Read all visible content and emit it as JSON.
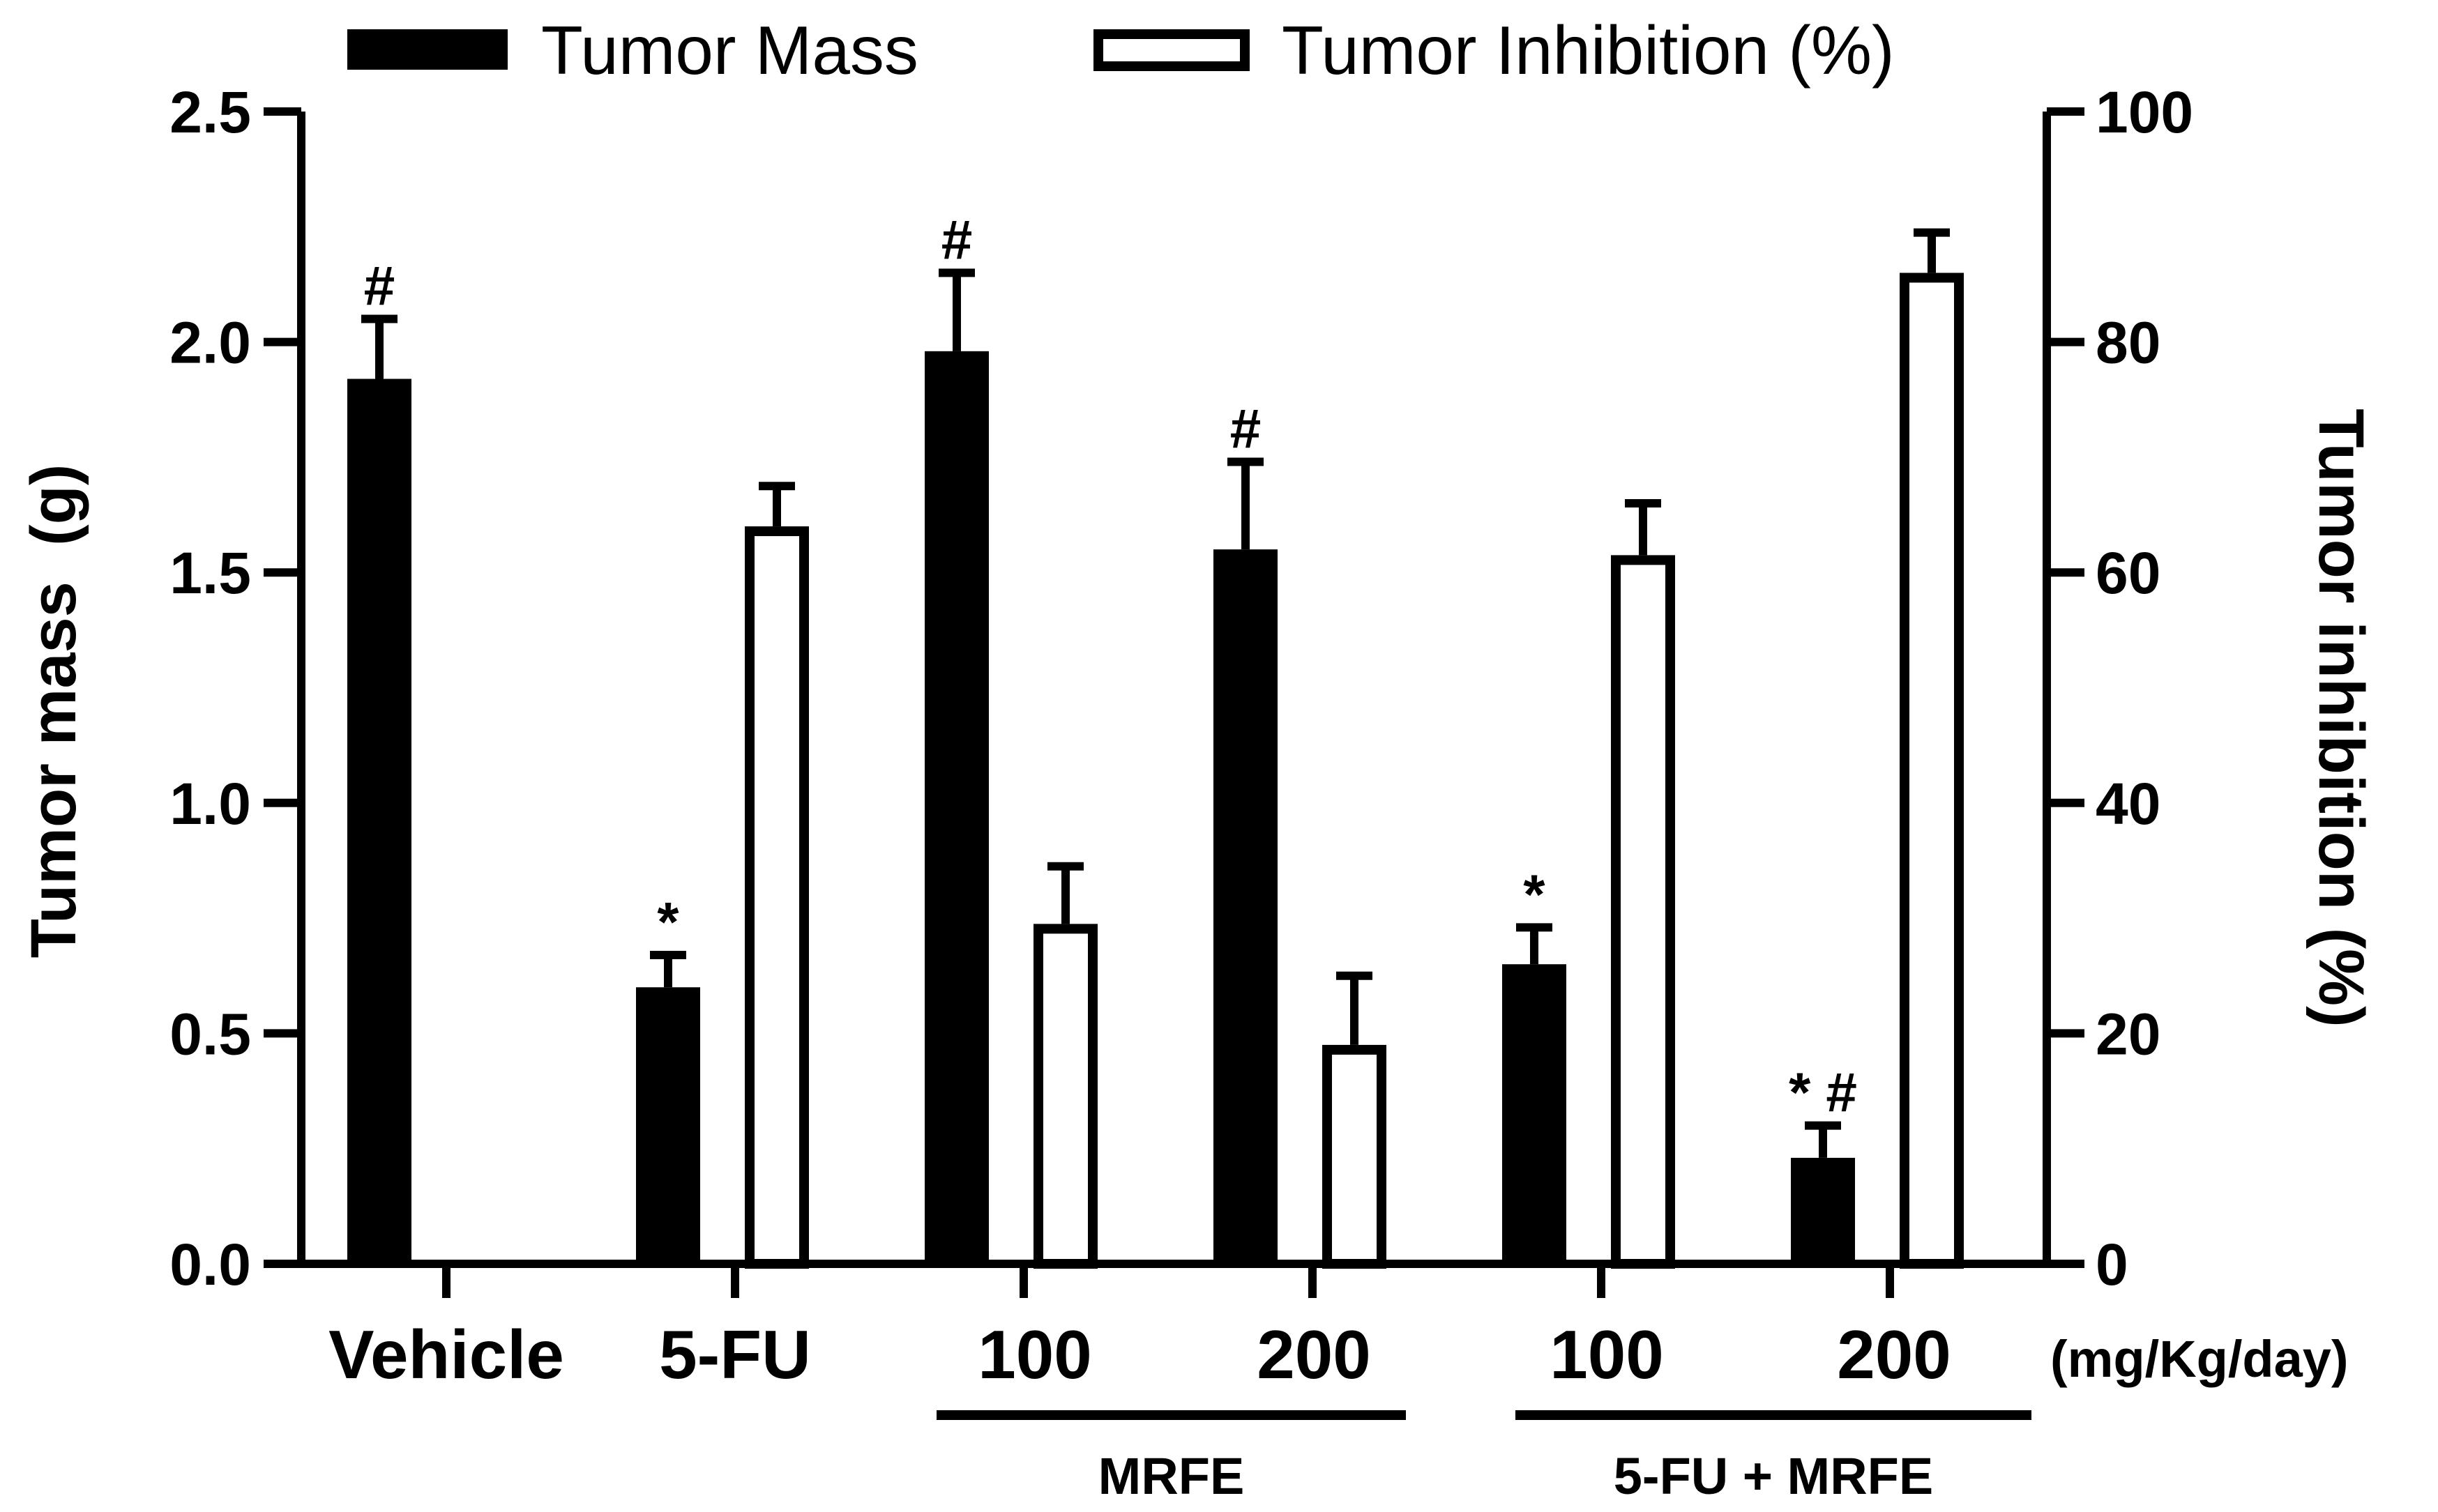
{
  "chart_data": {
    "type": "bar",
    "legend": {
      "mass_label": "Tumor Mass",
      "inhibition_label": "Tumor Inhibition (%)",
      "placement": "top"
    },
    "left_axis": {
      "label": "Tumor mass  (g)",
      "ylim": [
        0,
        2.5
      ],
      "ticks": [
        "0.0",
        "0.5",
        "1.0",
        "1.5",
        "2.0",
        "2.5"
      ]
    },
    "right_axis": {
      "label": "Tumor inhibition (%)",
      "ylim": [
        0,
        100
      ],
      "ticks": [
        "0",
        "20",
        "40",
        "60",
        "80",
        "100"
      ]
    },
    "categories": [
      "Vehicle",
      "5-FU",
      "100",
      "200",
      "100",
      "200"
    ],
    "unit_label": "(mg/Kg/day)",
    "groups": [
      {
        "label": "MRFE",
        "span": [
          2,
          3
        ]
      },
      {
        "label": "5-FU + MRFE",
        "span": [
          4,
          5
        ]
      }
    ],
    "series": [
      {
        "name": "Tumor Mass",
        "axis": "left",
        "fill": "solid",
        "values": [
          1.92,
          0.6,
          1.98,
          1.55,
          0.65,
          0.23
        ],
        "errors": [
          0.13,
          0.07,
          0.17,
          0.19,
          0.08,
          0.07
        ],
        "markers": [
          "#",
          "*",
          "#",
          "#",
          "*",
          "* #"
        ]
      },
      {
        "name": "Tumor Inhibition (%)",
        "axis": "right",
        "fill": "open",
        "values": [
          null,
          64,
          29.5,
          19,
          61.5,
          86
        ],
        "errors": [
          null,
          3.5,
          5,
          6,
          4.5,
          3.5
        ],
        "markers": [
          "",
          "",
          "",
          "",
          "",
          ""
        ]
      }
    ],
    "colors": {
      "mass_fill": "#000000",
      "inhibition_fill": "#ffffff",
      "stroke": "#000000"
    }
  }
}
